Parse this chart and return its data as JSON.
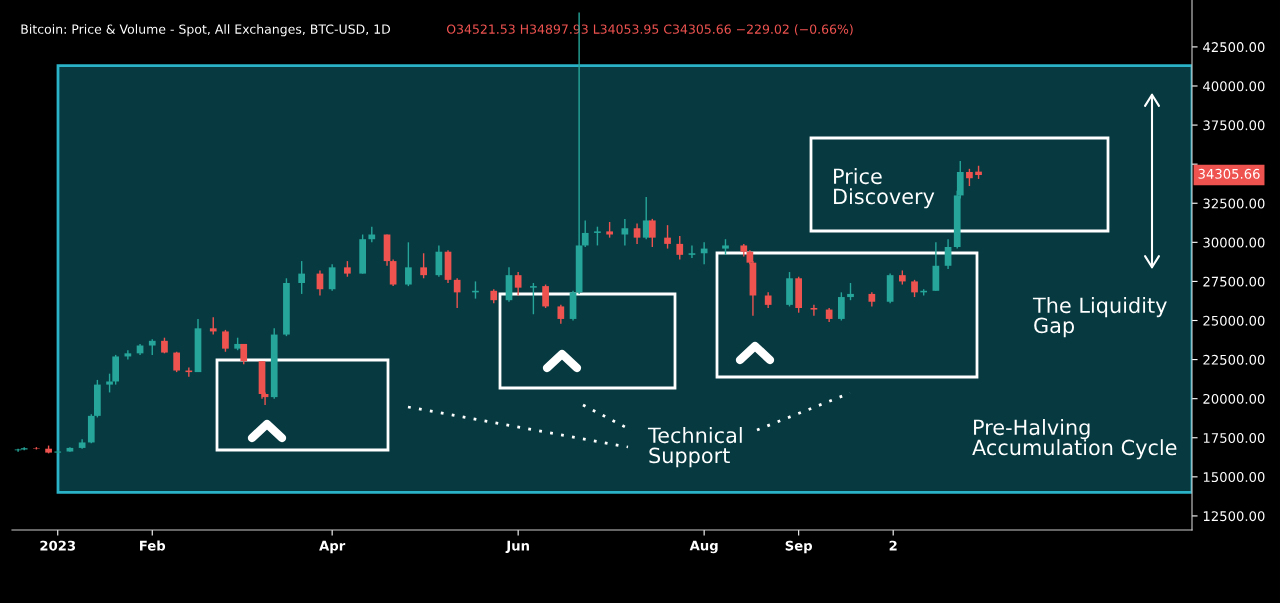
{
  "chart_data": {
    "type": "candlestick",
    "title": "Bitcoin: Price & Volume - Spot, All Exchanges, BTC-USD, 1D",
    "annotations": [
      "O34521.53 H34897.93 L34053.95 C34305.66 −229.02 (−0.66%)",
      "34305.66",
      "Price\nDiscovery",
      "The Liquidity\nGap",
      "Technical\nSupport",
      "Pre-Halving\nAccumulation Cycle"
    ],
    "x": [
      "2022-12-19",
      "2022-12-21",
      "2022-12-25",
      "2022-12-29",
      "2023-01-01",
      "2023-01-05",
      "2023-01-09",
      "2023-01-12",
      "2023-01-14",
      "2023-01-18",
      "2023-01-20",
      "2023-01-24",
      "2023-01-28",
      "2023-02-01",
      "2023-02-05",
      "2023-02-09",
      "2023-02-13",
      "2023-02-16",
      "2023-02-21",
      "2023-02-25",
      "2023-03-01",
      "2023-03-03",
      "2023-03-09",
      "2023-03-10",
      "2023-03-13",
      "2023-03-17",
      "2023-03-22",
      "2023-03-28",
      "2023-04-01",
      "2023-04-06",
      "2023-04-11",
      "2023-04-14",
      "2023-04-19",
      "2023-04-21",
      "2023-04-26",
      "2023-05-01",
      "2023-05-06",
      "2023-05-09",
      "2023-05-12",
      "2023-05-18",
      "2023-05-24",
      "2023-05-29",
      "2023-06-01",
      "2023-06-06",
      "2023-06-10",
      "2023-06-15",
      "2023-06-19",
      "2023-06-21",
      "2023-06-23",
      "2023-06-27",
      "2023-07-01",
      "2023-07-06",
      "2023-07-10",
      "2023-07-13",
      "2023-07-15",
      "2023-07-20",
      "2023-07-24",
      "2023-07-28",
      "2023-08-01",
      "2023-08-08",
      "2023-08-14",
      "2023-08-16",
      "2023-08-17",
      "2023-08-22",
      "2023-08-29",
      "2023-09-01",
      "2023-09-06",
      "2023-09-11",
      "2023-09-15",
      "2023-09-18",
      "2023-09-25",
      "2023-10-01",
      "2023-10-05",
      "2023-10-09",
      "2023-10-12",
      "2023-10-16",
      "2023-10-20",
      "2023-10-23",
      "2023-10-24",
      "2023-10-27",
      "2023-10-30"
    ],
    "ohlc": [
      [
        16700,
        16800,
        16600,
        16750
      ],
      [
        16750,
        16900,
        16700,
        16830
      ],
      [
        16830,
        16900,
        16750,
        16800
      ],
      [
        16800,
        17000,
        16500,
        16550
      ],
      [
        16550,
        16700,
        16500,
        16620
      ],
      [
        16620,
        16900,
        16600,
        16850
      ],
      [
        16850,
        17400,
        16800,
        17200
      ],
      [
        17200,
        19000,
        17150,
        18900
      ],
      [
        18900,
        21200,
        18800,
        20900
      ],
      [
        20900,
        21600,
        20400,
        21100
      ],
      [
        21100,
        22800,
        20900,
        22700
      ],
      [
        22700,
        23100,
        22500,
        22900
      ],
      [
        22900,
        23500,
        22800,
        23400
      ],
      [
        23400,
        23800,
        22800,
        23700
      ],
      [
        23700,
        23900,
        22900,
        22950
      ],
      [
        22950,
        23000,
        21700,
        21800
      ],
      [
        21800,
        22000,
        21400,
        21700
      ],
      [
        21700,
        25100,
        21700,
        24500
      ],
      [
        24500,
        25200,
        24100,
        24300
      ],
      [
        24300,
        24400,
        23000,
        23200
      ],
      [
        23200,
        23900,
        23100,
        23500
      ],
      [
        23500,
        23500,
        22200,
        22400
      ],
      [
        22400,
        22400,
        20000,
        20300
      ],
      [
        20300,
        20400,
        19600,
        20100
      ],
      [
        20100,
        24500,
        20000,
        24100
      ],
      [
        24100,
        27700,
        24000,
        27400
      ],
      [
        27400,
        28800,
        26700,
        28000
      ],
      [
        28000,
        28200,
        26600,
        27000
      ],
      [
        27000,
        28600,
        26900,
        28400
      ],
      [
        28400,
        28800,
        27800,
        28000
      ],
      [
        28000,
        30500,
        28000,
        30200
      ],
      [
        30200,
        31000,
        30000,
        30500
      ],
      [
        30500,
        30500,
        28500,
        28800
      ],
      [
        28800,
        28900,
        27200,
        27300
      ],
      [
        27300,
        30000,
        27200,
        28400
      ],
      [
        28400,
        29300,
        27700,
        27900
      ],
      [
        27900,
        29800,
        27800,
        29400
      ],
      [
        29400,
        29500,
        27400,
        27600
      ],
      [
        27600,
        27700,
        25800,
        26800
      ],
      [
        26800,
        27500,
        26400,
        26900
      ],
      [
        26900,
        27000,
        26100,
        26300
      ],
      [
        26300,
        28400,
        26200,
        27900
      ],
      [
        27900,
        28100,
        26600,
        27100
      ],
      [
        27100,
        27400,
        25400,
        27200
      ],
      [
        27200,
        27300,
        25800,
        25900
      ],
      [
        25900,
        26000,
        24800,
        25100
      ],
      [
        25100,
        26900,
        25000,
        26800
      ],
      [
        26800,
        44700,
        26700,
        29800
      ],
      [
        29800,
        31400,
        29700,
        30600
      ],
      [
        30600,
        31000,
        29800,
        30700
      ],
      [
        30700,
        31300,
        30300,
        30500
      ],
      [
        30500,
        31500,
        29800,
        30900
      ],
      [
        30900,
        31200,
        29900,
        30300
      ],
      [
        30300,
        32900,
        30200,
        31400
      ],
      [
        31400,
        31500,
        29700,
        30300
      ],
      [
        30300,
        31100,
        29600,
        29900
      ],
      [
        29900,
        30400,
        28900,
        29200
      ],
      [
        29200,
        29800,
        29000,
        29300
      ],
      [
        29300,
        30000,
        28600,
        29600
      ],
      [
        29600,
        30200,
        29200,
        29800
      ],
      [
        29800,
        29900,
        29100,
        29400
      ],
      [
        29400,
        29500,
        28600,
        28700
      ],
      [
        28700,
        28800,
        25300,
        26600
      ],
      [
        26600,
        26800,
        25800,
        26000
      ],
      [
        26000,
        28100,
        25900,
        27700
      ],
      [
        27700,
        27800,
        25500,
        25800
      ],
      [
        25800,
        26000,
        25300,
        25700
      ],
      [
        25700,
        25800,
        24900,
        25100
      ],
      [
        25100,
        26800,
        25000,
        26500
      ],
      [
        26500,
        27400,
        26300,
        26700
      ],
      [
        26700,
        26800,
        25900,
        26200
      ],
      [
        26200,
        28000,
        26100,
        27900
      ],
      [
        27900,
        28200,
        27300,
        27500
      ],
      [
        27500,
        27600,
        26500,
        26800
      ],
      [
        26800,
        27000,
        26600,
        26900
      ],
      [
        26900,
        30000,
        26900,
        28500
      ],
      [
        28500,
        30200,
        28300,
        29700
      ],
      [
        29700,
        33300,
        29600,
        33000
      ],
      [
        33000,
        35200,
        32800,
        34500
      ],
      [
        34500,
        34700,
        33600,
        34100
      ],
      [
        34521.53,
        34897.93,
        34053.95,
        34305.66
      ]
    ],
    "colors": [
      "#26a69a",
      "#26a69a",
      "#ef5350",
      "#ef5350",
      "#26a69a",
      "#26a69a",
      "#26a69a",
      "#26a69a",
      "#26a69a",
      "#26a69a",
      "#26a69a",
      "#26a69a",
      "#26a69a",
      "#26a69a",
      "#ef5350",
      "#ef5350",
      "#ef5350",
      "#26a69a",
      "#ef5350",
      "#ef5350",
      "#26a69a",
      "#ef5350",
      "#ef5350",
      "#ef5350",
      "#26a69a",
      "#26a69a",
      "#26a69a",
      "#ef5350",
      "#26a69a",
      "#ef5350",
      "#26a69a",
      "#26a69a",
      "#ef5350",
      "#ef5350",
      "#26a69a",
      "#ef5350",
      "#26a69a",
      "#ef5350",
      "#ef5350",
      "#26a69a",
      "#ef5350",
      "#26a69a",
      "#ef5350",
      "#26a69a",
      "#ef5350",
      "#ef5350",
      "#26a69a",
      "#26a69a",
      "#26a69a",
      "#26a69a",
      "#ef5350",
      "#26a69a",
      "#ef5350",
      "#26a69a",
      "#ef5350",
      "#ef5350",
      "#ef5350",
      "#26a69a",
      "#26a69a",
      "#26a69a",
      "#ef5350",
      "#ef5350",
      "#ef5350",
      "#ef5350",
      "#26a69a",
      "#ef5350",
      "#ef5350",
      "#ef5350",
      "#26a69a",
      "#26a69a",
      "#ef5350",
      "#26a69a",
      "#ef5350",
      "#ef5350",
      "#26a69a",
      "#26a69a",
      "#26a69a",
      "#26a69a",
      "#26a69a",
      "#ef5350",
      "#ef5350"
    ],
    "xlim": [
      "2022-12-17",
      "2024-01-08"
    ],
    "xticks": [
      {
        "value": "2023-01-01",
        "label": "2023"
      },
      {
        "value": "2023-02-01",
        "label": "Feb"
      },
      {
        "value": "2023-04-01",
        "label": "Apr"
      },
      {
        "value": "2023-06-01",
        "label": "Jun"
      },
      {
        "value": "2023-08-01",
        "label": "Aug"
      },
      {
        "value": "2023-09-01",
        "label": "Sep"
      },
      {
        "value": "2023-10-02",
        "label": "2"
      }
    ],
    "ylim": [
      11600,
      45500
    ],
    "yticks": [
      {
        "value": 12500,
        "label": "12500.00"
      },
      {
        "value": 15000,
        "label": "15000.00"
      },
      {
        "value": 17500,
        "label": "17500.00"
      },
      {
        "value": 20000,
        "label": "20000.00"
      },
      {
        "value": 22500,
        "label": "22500.00"
      },
      {
        "value": 25000,
        "label": "25000.00"
      },
      {
        "value": 27500,
        "label": "27500.00"
      },
      {
        "value": 30000,
        "label": "30000.00"
      },
      {
        "value": 32500,
        "label": "32500.00"
      },
      {
        "value": 35000,
        "label": null
      },
      {
        "value": 37500,
        "label": "37500.00"
      },
      {
        "value": 40000,
        "label": "40000.00"
      },
      {
        "value": 42500,
        "label": "42500.00"
      }
    ],
    "bands": [
      {
        "axis": "y",
        "from": 14000,
        "to": 41300,
        "color": "#063a40"
      }
    ],
    "grid": false
  }
}
